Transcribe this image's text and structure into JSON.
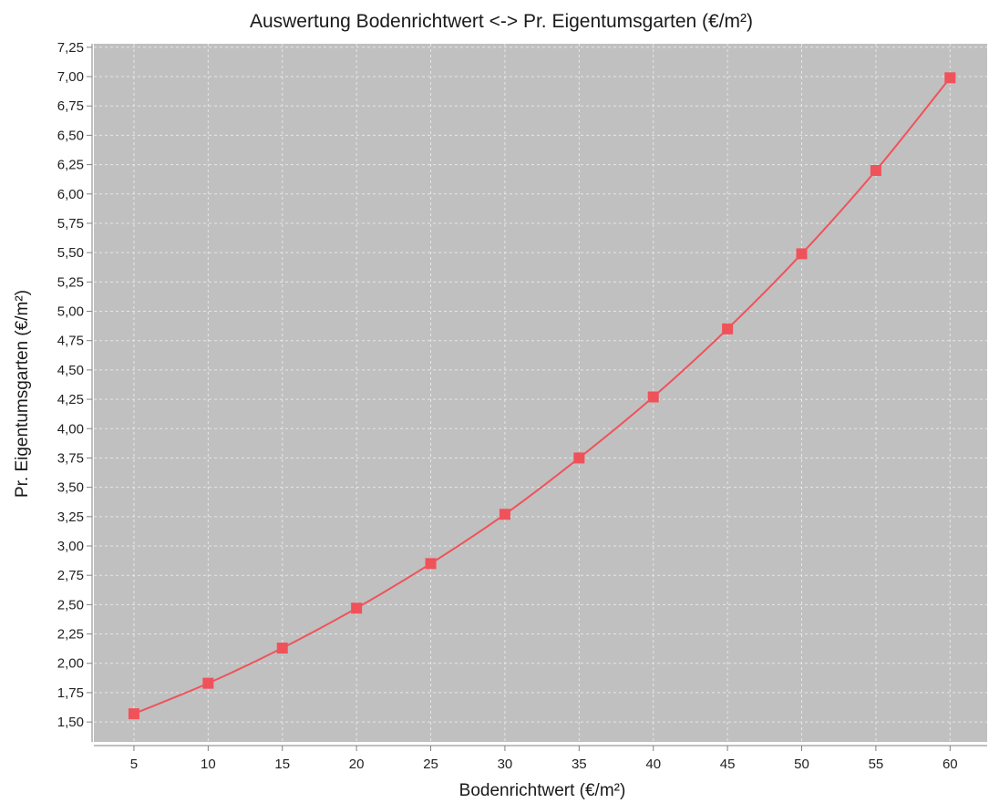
{
  "chart_data": {
    "type": "line",
    "title": "Auswertung Bodenrichtwert <-> Pr. Eigentumsgarten  (€/m²)",
    "xlabel": "Bodenrichtwert (€/m²)",
    "ylabel": "Pr. Eigentumsgarten  (€/m²)",
    "x": [
      5,
      10,
      15,
      20,
      25,
      30,
      35,
      40,
      45,
      50,
      55,
      60
    ],
    "x_tick_labels": [
      "5",
      "10",
      "15",
      "20",
      "25",
      "30",
      "35",
      "40",
      "45",
      "50",
      "55",
      "60"
    ],
    "y_tick_values": [
      1.5,
      1.75,
      2.0,
      2.25,
      2.5,
      2.75,
      3.0,
      3.25,
      3.5,
      3.75,
      4.0,
      4.25,
      4.5,
      4.75,
      5.0,
      5.25,
      5.5,
      5.75,
      6.0,
      6.25,
      6.5,
      6.75,
      7.0,
      7.25
    ],
    "y_tick_labels": [
      "1,50",
      "1,75",
      "2,00",
      "2,25",
      "2,50",
      "2,75",
      "3,00",
      "3,25",
      "3,50",
      "3,75",
      "4,00",
      "4,25",
      "4,50",
      "4,75",
      "5,00",
      "5,25",
      "5,50",
      "5,75",
      "6,00",
      "6,25",
      "6,50",
      "6,75",
      "7,00",
      "7,25"
    ],
    "series": [
      {
        "values": [
          1.57,
          1.83,
          2.13,
          2.47,
          2.85,
          3.27,
          3.75,
          4.27,
          4.85,
          5.49,
          6.2,
          6.99
        ]
      }
    ],
    "xlim": [
      2.3,
      62.5
    ],
    "ylim": [
      1.33,
      7.28
    ],
    "grid": true,
    "legend": "none",
    "colors": {
      "series": "#f0525a",
      "plot_background": "#c0c0c0",
      "grid": "#e6e6e6",
      "axis": "#808080"
    }
  }
}
